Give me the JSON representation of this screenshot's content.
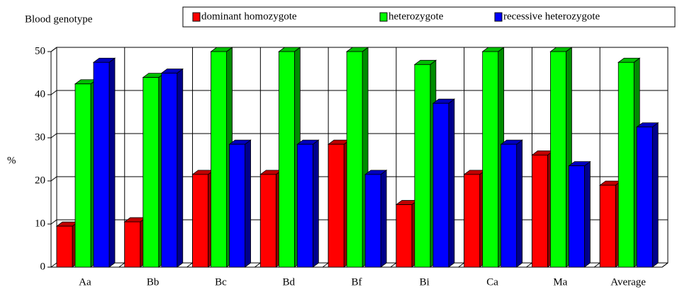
{
  "chart_data": {
    "type": "bar3d",
    "title": "Blood genotype",
    "y_label": "%",
    "categories": [
      "Aa",
      "Bb",
      "Bc",
      "Bd",
      "Bf",
      "Bi",
      "Ca",
      "Ma",
      "Average"
    ],
    "series": [
      {
        "name": "dominant homozygote",
        "color": "#ff0000",
        "values": [
          9.5,
          10.5,
          21.5,
          21.5,
          28.5,
          14.5,
          21.5,
          26,
          19
        ]
      },
      {
        "name": "heterozygote",
        "color": "#00ff00",
        "values": [
          42.5,
          44,
          50,
          50,
          50,
          47,
          50,
          50,
          47.5
        ]
      },
      {
        "name": "recessive heterozygote",
        "color": "#0000ff",
        "values": [
          47.5,
          45,
          28.5,
          28.5,
          21.5,
          38,
          28.5,
          23.5,
          32.5
        ]
      }
    ],
    "ylim": [
      0,
      50
    ],
    "yticks": [
      0,
      10,
      20,
      30,
      40,
      50
    ],
    "grid": true
  }
}
